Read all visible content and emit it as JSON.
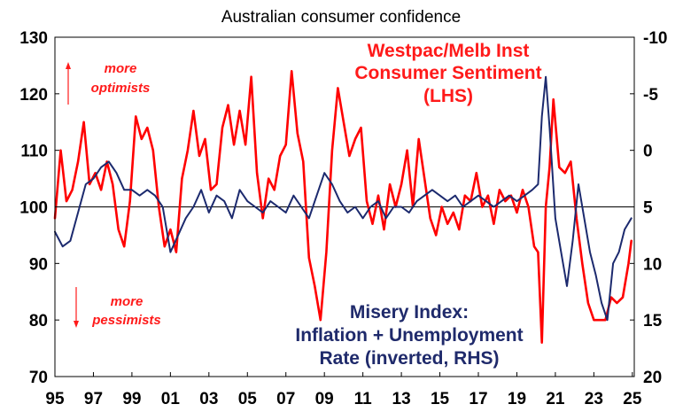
{
  "chart_data": {
    "type": "line",
    "title": "Australian consumer confidence",
    "x_ticks": [
      "95",
      "97",
      "99",
      "01",
      "03",
      "05",
      "07",
      "09",
      "11",
      "13",
      "15",
      "17",
      "19",
      "21",
      "23",
      "25"
    ],
    "left_axis": {
      "label": "LHS",
      "ylim": [
        70,
        130
      ],
      "ticks": [
        "70",
        "80",
        "90",
        "100",
        "110",
        "120",
        "130"
      ]
    },
    "right_axis": {
      "label": "RHS (inverted)",
      "ylim": [
        20,
        -10
      ],
      "ticks": [
        "20",
        "15",
        "10",
        "5",
        "0",
        "-5",
        "-10"
      ]
    },
    "reference_line": 100,
    "series": [
      {
        "name": "Westpac/Melb Inst Consumer Sentiment (LHS)",
        "axis": "left",
        "color": "#ff0000",
        "x": [
          1995.0,
          1995.3,
          1995.6,
          1995.9,
          1996.2,
          1996.5,
          1996.8,
          1997.1,
          1997.4,
          1997.7,
          1998.0,
          1998.3,
          1998.6,
          1998.9,
          1999.2,
          1999.5,
          1999.8,
          2000.1,
          2000.4,
          2000.7,
          2001.0,
          2001.3,
          2001.6,
          2001.9,
          2002.2,
          2002.5,
          2002.8,
          2003.1,
          2003.4,
          2003.7,
          2004.0,
          2004.3,
          2004.6,
          2004.9,
          2005.2,
          2005.5,
          2005.8,
          2006.1,
          2006.4,
          2006.7,
          2007.0,
          2007.3,
          2007.6,
          2007.9,
          2008.2,
          2008.5,
          2008.8,
          2009.1,
          2009.4,
          2009.7,
          2010.0,
          2010.3,
          2010.6,
          2010.9,
          2011.2,
          2011.5,
          2011.8,
          2012.1,
          2012.4,
          2012.7,
          2013.0,
          2013.3,
          2013.6,
          2013.9,
          2014.2,
          2014.5,
          2014.8,
          2015.1,
          2015.4,
          2015.7,
          2016.0,
          2016.3,
          2016.6,
          2016.9,
          2017.2,
          2017.5,
          2017.8,
          2018.1,
          2018.4,
          2018.7,
          2019.0,
          2019.3,
          2019.6,
          2019.9,
          2020.1,
          2020.3,
          2020.5,
          2020.7,
          2020.9,
          2021.2,
          2021.5,
          2021.8,
          2022.1,
          2022.4,
          2022.7,
          2023.0,
          2023.3,
          2023.6,
          2023.9,
          2024.2,
          2024.5,
          2024.8,
          2024.95
        ],
        "values": [
          98,
          110,
          101,
          103,
          108,
          115,
          104,
          106,
          103,
          108,
          104,
          96,
          93,
          101,
          116,
          112,
          114,
          110,
          100,
          93,
          96,
          92,
          105,
          110,
          117,
          109,
          112,
          103,
          104,
          114,
          118,
          111,
          117,
          111,
          123,
          106,
          98,
          105,
          103,
          109,
          111,
          124,
          113,
          108,
          91,
          86,
          80,
          92,
          110,
          121,
          115,
          109,
          112,
          114,
          101,
          97,
          102,
          96,
          104,
          100,
          104,
          110,
          100,
          112,
          105,
          98,
          95,
          100,
          97,
          99,
          96,
          102,
          101,
          106,
          100,
          102,
          97,
          103,
          101,
          102,
          99,
          103,
          100,
          93,
          92,
          76,
          100,
          107,
          119,
          107,
          106,
          108,
          98,
          90,
          83,
          80,
          80,
          80,
          84,
          83,
          84,
          90,
          94
        ]
      },
      {
        "name": "Misery Index: Inflation + Unemployment Rate (inverted, RHS)",
        "axis": "right",
        "color": "#1c2a6e",
        "x": [
          1995.0,
          1995.4,
          1995.8,
          1996.2,
          1996.6,
          1997.0,
          1997.4,
          1997.8,
          1998.2,
          1998.6,
          1999.0,
          1999.4,
          1999.8,
          2000.2,
          2000.6,
          2001.0,
          2001.4,
          2001.8,
          2002.2,
          2002.6,
          2003.0,
          2003.4,
          2003.8,
          2004.2,
          2004.6,
          2005.0,
          2005.4,
          2005.8,
          2006.2,
          2006.6,
          2007.0,
          2007.4,
          2007.8,
          2008.2,
          2008.6,
          2009.0,
          2009.4,
          2009.8,
          2010.2,
          2010.6,
          2011.0,
          2011.4,
          2011.8,
          2012.2,
          2012.6,
          2013.0,
          2013.4,
          2013.8,
          2014.2,
          2014.6,
          2015.0,
          2015.4,
          2015.8,
          2016.2,
          2016.6,
          2017.0,
          2017.4,
          2017.8,
          2018.2,
          2018.6,
          2019.0,
          2019.4,
          2019.8,
          2020.1,
          2020.3,
          2020.5,
          2020.7,
          2021.0,
          2021.3,
          2021.6,
          2021.9,
          2022.2,
          2022.5,
          2022.8,
          2023.1,
          2023.4,
          2023.7,
          2024.0,
          2024.3,
          2024.6,
          2024.95
        ],
        "values": [
          7.2,
          8.5,
          8.0,
          5.5,
          3.0,
          2.5,
          1.5,
          1.0,
          2.0,
          3.5,
          3.5,
          4.0,
          3.5,
          4.0,
          5.0,
          9.0,
          7.5,
          6.0,
          5.0,
          3.5,
          5.5,
          4.0,
          4.5,
          6.0,
          3.5,
          4.5,
          5.0,
          5.5,
          4.5,
          5.0,
          5.5,
          4.0,
          5.0,
          6.0,
          4.0,
          2.0,
          3.0,
          4.5,
          5.5,
          5.0,
          6.0,
          5.0,
          4.5,
          6.0,
          5.0,
          5.0,
          5.5,
          4.5,
          4.0,
          3.5,
          4.0,
          4.5,
          4.0,
          5.0,
          4.5,
          4.0,
          4.5,
          5.0,
          4.5,
          4.0,
          4.5,
          4.0,
          3.5,
          3.0,
          -3.0,
          -6.5,
          -2.0,
          6.0,
          9.0,
          12.0,
          8.0,
          3.0,
          6.0,
          9.0,
          11.0,
          13.5,
          15.0,
          10.0,
          9.0,
          7.0,
          6.0
        ]
      }
    ],
    "annotations": {
      "westpac_label": [
        "Westpac/Melb Inst",
        "Consumer Sentiment",
        "(LHS)"
      ],
      "misery_label": [
        "Misery Index:",
        "Inflation + Unemployment",
        "Rate (inverted, RHS)"
      ],
      "optimists": [
        "more",
        "optimists"
      ],
      "pessimists": [
        "more",
        "pessimists"
      ]
    }
  }
}
